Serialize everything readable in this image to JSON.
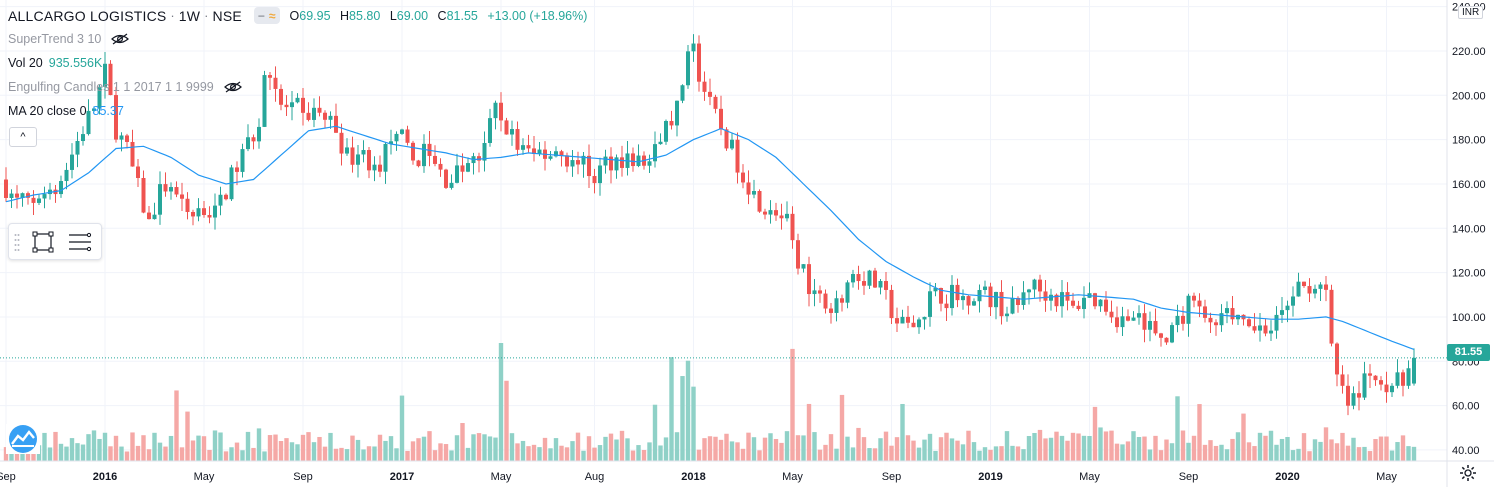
{
  "header": {
    "symbol": "ALLCARGO LOGISTICS",
    "interval": "1W",
    "exchange": "NSE",
    "toggle_a": "−",
    "toggle_b": "≈",
    "ohlc": {
      "o_label": "O",
      "o": "69.95",
      "h_label": "H",
      "h": "85.80",
      "l_label": "L",
      "l": "69.00",
      "c_label": "C",
      "c": "81.55",
      "change": "+13.00 (+18.96%)"
    }
  },
  "indicators": {
    "supertrend": {
      "label": "SuperTrend 3 10"
    },
    "volume": {
      "label": "Vol 20",
      "value": "935.556K"
    },
    "engulfing": {
      "label": "Engulfing Candles 1 1 2017 1 1 9999"
    },
    "ma": {
      "label": "MA 20 close 0",
      "value": "85.37"
    }
  },
  "collapse_label": "^",
  "price_axis": {
    "currency": "INR",
    "last_price": "81.55"
  },
  "colors": {
    "up": "#26a69a",
    "down": "#ef5350",
    "ma": "#2196f3",
    "vol_up": "#8fd1c7",
    "vol_down": "#f5a8a6",
    "grid": "#f0f3fa"
  },
  "chart_data": {
    "type": "candlestick",
    "title": "ALLCARGO LOGISTICS, 1W, NSE",
    "ylim": [
      35,
      243
    ],
    "y_ticks": [
      40,
      60,
      80,
      100,
      120,
      140,
      160,
      180,
      200,
      220,
      240
    ],
    "x_tick_labels": [
      {
        "week": 0,
        "label": "Sep"
      },
      {
        "week": 18,
        "label": "2016"
      },
      {
        "week": 36,
        "label": "May"
      },
      {
        "week": 54,
        "label": "Sep"
      },
      {
        "week": 72,
        "label": "2017"
      },
      {
        "week": 90,
        "label": "May"
      },
      {
        "week": 107,
        "label": "Aug"
      },
      {
        "week": 125,
        "label": "2018"
      },
      {
        "week": 143,
        "label": "May"
      },
      {
        "week": 161,
        "label": "Sep"
      },
      {
        "week": 179,
        "label": "2019"
      },
      {
        "week": 197,
        "label": "May"
      },
      {
        "week": 215,
        "label": "Sep"
      },
      {
        "week": 233,
        "label": "2020"
      },
      {
        "week": 251,
        "label": "May"
      }
    ],
    "anchors": [
      [
        0,
        162
      ],
      [
        3,
        152
      ],
      [
        6,
        150
      ],
      [
        9,
        158
      ],
      [
        12,
        168
      ],
      [
        15,
        185
      ],
      [
        17,
        195
      ],
      [
        19,
        210
      ],
      [
        21,
        185
      ],
      [
        23,
        175
      ],
      [
        25,
        158
      ],
      [
        27,
        142
      ],
      [
        29,
        155
      ],
      [
        32,
        153
      ],
      [
        35,
        150
      ],
      [
        37,
        148
      ],
      [
        39,
        147
      ],
      [
        41,
        158
      ],
      [
        43,
        168
      ],
      [
        45,
        178
      ],
      [
        47,
        188
      ],
      [
        48,
        210
      ],
      [
        49,
        212
      ],
      [
        51,
        195
      ],
      [
        53,
        193
      ],
      [
        55,
        190
      ],
      [
        57,
        193
      ],
      [
        59,
        190
      ],
      [
        61,
        185
      ],
      [
        63,
        172
      ],
      [
        65,
        175
      ],
      [
        67,
        165
      ],
      [
        69,
        170
      ],
      [
        71,
        180
      ],
      [
        73,
        178
      ],
      [
        75,
        170
      ],
      [
        77,
        175
      ],
      [
        79,
        168
      ],
      [
        81,
        162
      ],
      [
        83,
        165
      ],
      [
        85,
        168
      ],
      [
        87,
        172
      ],
      [
        89,
        185
      ],
      [
        90,
        193
      ],
      [
        92,
        185
      ],
      [
        95,
        175
      ],
      [
        98,
        172
      ],
      [
        101,
        175
      ],
      [
        104,
        170
      ],
      [
        106,
        168
      ],
      [
        108,
        163
      ],
      [
        110,
        170
      ],
      [
        113,
        172
      ],
      [
        116,
        170
      ],
      [
        118,
        168
      ],
      [
        120,
        180
      ],
      [
        122,
        190
      ],
      [
        124,
        200
      ],
      [
        125,
        215
      ],
      [
        126,
        220
      ],
      [
        127,
        210
      ],
      [
        129,
        195
      ],
      [
        131,
        185
      ],
      [
        133,
        175
      ],
      [
        135,
        165
      ],
      [
        137,
        155
      ],
      [
        139,
        150
      ],
      [
        141,
        148
      ],
      [
        143,
        140
      ],
      [
        145,
        125
      ],
      [
        147,
        115
      ],
      [
        149,
        108
      ],
      [
        151,
        108
      ],
      [
        153,
        110
      ],
      [
        155,
        120
      ],
      [
        157,
        118
      ],
      [
        159,
        115
      ],
      [
        161,
        108
      ],
      [
        163,
        98
      ],
      [
        165,
        95
      ],
      [
        167,
        100
      ],
      [
        169,
        108
      ],
      [
        171,
        110
      ],
      [
        173,
        110
      ],
      [
        175,
        108
      ],
      [
        177,
        112
      ],
      [
        179,
        110
      ],
      [
        181,
        107
      ],
      [
        183,
        103
      ],
      [
        185,
        105
      ],
      [
        187,
        115
      ],
      [
        189,
        112
      ],
      [
        191,
        110
      ],
      [
        193,
        108
      ],
      [
        195,
        103
      ],
      [
        197,
        110
      ],
      [
        199,
        108
      ],
      [
        201,
        105
      ],
      [
        203,
        100
      ],
      [
        205,
        98
      ],
      [
        207,
        97
      ],
      [
        209,
        95
      ],
      [
        211,
        92
      ],
      [
        213,
        93
      ],
      [
        215,
        100
      ],
      [
        217,
        112
      ],
      [
        219,
        100
      ],
      [
        221,
        100
      ],
      [
        223,
        105
      ],
      [
        225,
        100
      ],
      [
        227,
        97
      ],
      [
        229,
        95
      ],
      [
        231,
        95
      ],
      [
        233,
        100
      ],
      [
        235,
        112
      ],
      [
        237,
        113
      ],
      [
        239,
        115
      ],
      [
        241,
        108
      ],
      [
        242,
        85
      ],
      [
        243,
        72
      ],
      [
        245,
        60
      ],
      [
        247,
        65
      ],
      [
        249,
        75
      ],
      [
        251,
        72
      ],
      [
        253,
        70
      ],
      [
        255,
        70
      ],
      [
        256,
        81.55
      ]
    ],
    "ma_anchors": [
      [
        0,
        152
      ],
      [
        5,
        155
      ],
      [
        10,
        157
      ],
      [
        15,
        165
      ],
      [
        20,
        176
      ],
      [
        25,
        177
      ],
      [
        30,
        172
      ],
      [
        35,
        164
      ],
      [
        40,
        160
      ],
      [
        45,
        162
      ],
      [
        50,
        173
      ],
      [
        55,
        184
      ],
      [
        60,
        186
      ],
      [
        65,
        182
      ],
      [
        70,
        178
      ],
      [
        75,
        176
      ],
      [
        80,
        174
      ],
      [
        85,
        171
      ],
      [
        90,
        172
      ],
      [
        95,
        174
      ],
      [
        100,
        173
      ],
      [
        105,
        172
      ],
      [
        110,
        171
      ],
      [
        115,
        170
      ],
      [
        120,
        173
      ],
      [
        125,
        180
      ],
      [
        130,
        185
      ],
      [
        135,
        180
      ],
      [
        140,
        172
      ],
      [
        145,
        160
      ],
      [
        150,
        148
      ],
      [
        155,
        135
      ],
      [
        160,
        125
      ],
      [
        165,
        118
      ],
      [
        170,
        112
      ],
      [
        175,
        110
      ],
      [
        180,
        109
      ],
      [
        185,
        108
      ],
      [
        190,
        109
      ],
      [
        195,
        110
      ],
      [
        200,
        109
      ],
      [
        205,
        108
      ],
      [
        210,
        104
      ],
      [
        215,
        102
      ],
      [
        220,
        101
      ],
      [
        225,
        100
      ],
      [
        230,
        99
      ],
      [
        235,
        99
      ],
      [
        240,
        100
      ],
      [
        243,
        98
      ],
      [
        246,
        95
      ],
      [
        249,
        92
      ],
      [
        252,
        89
      ],
      [
        256,
        85.37
      ]
    ],
    "last": {
      "open": 69.95,
      "high": 85.8,
      "low": 69.0,
      "close": 81.55,
      "change": "+13.00 (+18.96%)"
    },
    "volume_peaks": [
      {
        "week": 90,
        "rel": 1.0,
        "dir": "up"
      },
      {
        "week": 91,
        "rel": 0.68,
        "dir": "down"
      },
      {
        "week": 143,
        "rel": 0.95,
        "dir": "down"
      },
      {
        "week": 121,
        "rel": 0.88,
        "dir": "up"
      },
      {
        "week": 124,
        "rel": 0.85,
        "dir": "up"
      },
      {
        "week": 123,
        "rel": 0.72,
        "dir": "up"
      },
      {
        "week": 125,
        "rel": 0.63,
        "dir": "up"
      }
    ]
  }
}
